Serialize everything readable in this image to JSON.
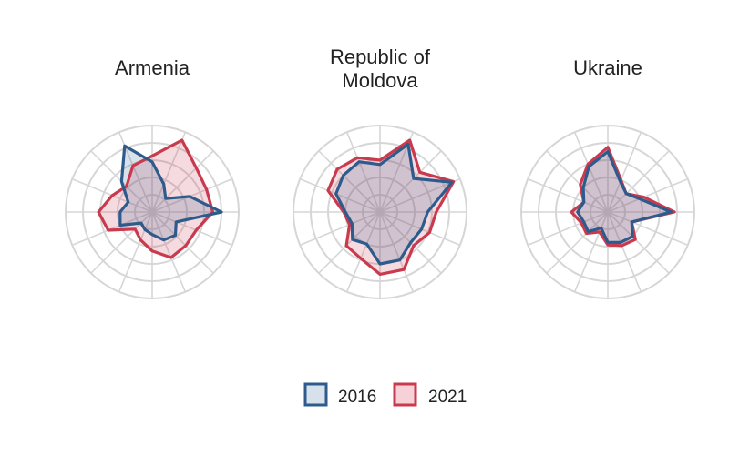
{
  "chart_data": {
    "type": "radar",
    "axes_count": 16,
    "rings": [
      0.2,
      0.4,
      0.6,
      0.8,
      1.0
    ],
    "grid": true,
    "grid_color": "#d6d6d6",
    "legend_position": "bottom",
    "legend": [
      {
        "name": "2016",
        "stroke": "#2e5b8c",
        "fill": "#d7e1ec"
      },
      {
        "name": "2021",
        "stroke": "#c93a4e",
        "fill": "#f6d2d8"
      }
    ],
    "panels": [
      {
        "title_lines": [
          "Armenia"
        ],
        "series": [
          {
            "name": "2016",
            "values": [
              0.58,
              0.35,
              0.22,
              0.47,
              0.8,
              0.3,
              0.38,
              0.35,
              0.26,
              0.22,
              0.18,
              0.4,
              0.37,
              0.3,
              0.5,
              0.83
            ]
          },
          {
            "name": "2021",
            "values": [
              0.65,
              0.9,
              0.72,
              0.68,
              0.7,
              0.55,
              0.55,
              0.57,
              0.45,
              0.35,
              0.28,
              0.55,
              0.62,
              0.5,
              0.42,
              0.58
            ]
          }
        ]
      },
      {
        "title_lines": [
          "Republic of",
          "Moldova"
        ],
        "series": [
          {
            "name": "2016",
            "values": [
              0.55,
              0.85,
              0.55,
              0.9,
              0.55,
              0.52,
              0.5,
              0.6,
              0.6,
              0.4,
              0.45,
              0.35,
              0.4,
              0.55,
              0.6,
              0.63
            ]
          },
          {
            "name": "2021",
            "values": [
              0.6,
              0.9,
              0.65,
              0.92,
              0.65,
              0.62,
              0.55,
              0.72,
              0.72,
              0.58,
              0.55,
              0.38,
              0.42,
              0.65,
              0.7,
              0.68
            ]
          }
        ]
      },
      {
        "title_lines": [
          "Ukraine"
        ],
        "series": [
          {
            "name": "2016",
            "values": [
              0.7,
              0.38,
              0.3,
              0.4,
              0.73,
              0.3,
              0.4,
              0.38,
              0.35,
              0.2,
              0.32,
              0.3,
              0.35,
              0.3,
              0.4,
              0.57
            ]
          },
          {
            "name": "2021",
            "values": [
              0.75,
              0.4,
              0.3,
              0.45,
              0.77,
              0.3,
              0.45,
              0.42,
              0.38,
              0.25,
              0.35,
              0.33,
              0.42,
              0.3,
              0.45,
              0.6
            ]
          }
        ]
      }
    ]
  }
}
